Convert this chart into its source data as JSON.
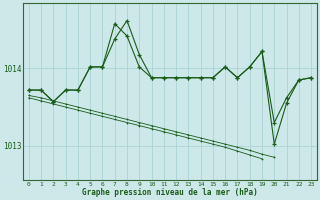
{
  "title": "Graphe pression niveau de la mer (hPa)",
  "background_color": "#cce8e8",
  "grid_color": "#aad4d4",
  "line_color": "#1a5c1a",
  "x_ticks": [
    0,
    1,
    2,
    3,
    4,
    5,
    6,
    7,
    8,
    9,
    10,
    11,
    12,
    13,
    14,
    15,
    16,
    17,
    18,
    19,
    20,
    21,
    22,
    23
  ],
  "ylim": [
    1012.55,
    1014.85
  ],
  "yticks": [
    1013,
    1014
  ],
  "s1_x": [
    0,
    1,
    2,
    3,
    4,
    5,
    6,
    7,
    8,
    9,
    10,
    11,
    12,
    13,
    14,
    15,
    16,
    17,
    18,
    19,
    20,
    21,
    22,
    23
  ],
  "s1_y": [
    1013.72,
    1013.72,
    1013.57,
    1013.72,
    1013.72,
    1014.02,
    1014.02,
    1014.38,
    1014.62,
    1014.18,
    1013.88,
    1013.88,
    1013.88,
    1013.88,
    1013.88,
    1013.88,
    1014.02,
    1013.88,
    1014.02,
    1014.22,
    1013.3,
    1013.62,
    1013.85,
    1013.88
  ],
  "s2_x": [
    0,
    1,
    2,
    3,
    4,
    5,
    6,
    7,
    8,
    9,
    10,
    11,
    12,
    13,
    14,
    15,
    16,
    17,
    18,
    19,
    20,
    21,
    22,
    23
  ],
  "s2_y": [
    1013.72,
    1013.72,
    1013.57,
    1013.72,
    1013.72,
    1014.02,
    1014.02,
    1014.58,
    1014.42,
    1014.02,
    1013.88,
    1013.88,
    1013.88,
    1013.88,
    1013.88,
    1013.88,
    1014.02,
    1013.88,
    1014.02,
    1014.22,
    1013.02,
    1013.55,
    1013.85,
    1013.88
  ],
  "s3_x": [
    0,
    1,
    2,
    3,
    4,
    5,
    6,
    7,
    8,
    9,
    10,
    11,
    12,
    13,
    14,
    15,
    16,
    17,
    18,
    19,
    20
  ],
  "s3_y": [
    1013.65,
    1013.62,
    1013.58,
    1013.54,
    1013.5,
    1013.46,
    1013.42,
    1013.38,
    1013.34,
    1013.3,
    1013.26,
    1013.22,
    1013.18,
    1013.14,
    1013.1,
    1013.06,
    1013.02,
    1012.98,
    1012.94,
    1012.89,
    1012.85
  ],
  "s4_x": [
    0,
    1,
    2,
    3,
    4,
    5,
    6,
    7,
    8,
    9,
    10,
    11,
    12,
    13,
    14,
    15,
    16,
    17,
    18,
    19
  ],
  "s4_y": [
    1013.62,
    1013.58,
    1013.54,
    1013.5,
    1013.46,
    1013.42,
    1013.38,
    1013.34,
    1013.3,
    1013.26,
    1013.22,
    1013.18,
    1013.14,
    1013.1,
    1013.06,
    1013.02,
    1012.98,
    1012.93,
    1012.88,
    1012.83
  ]
}
